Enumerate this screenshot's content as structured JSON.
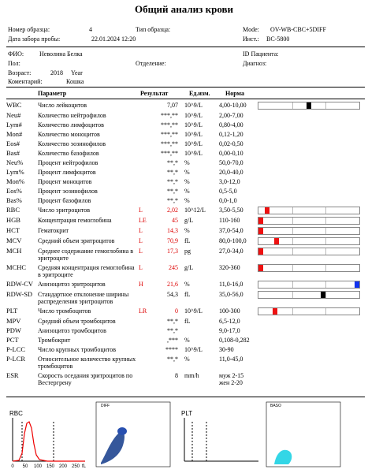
{
  "title": "Общий анализ крови",
  "header": {
    "sample_no": {
      "label": "Номер образца:",
      "value": "4"
    },
    "sample_type": {
      "label": "Тип образца:"
    },
    "mode": {
      "label": "Mode:",
      "value": "OV-WB-CBC+5DIFF"
    },
    "date": {
      "label": "Дата забора пробы:",
      "value": "22.01.2024 12:20"
    },
    "inst": {
      "label": "Инст.:",
      "value": "BC-5800"
    },
    "name": {
      "label": "ФИО:",
      "value": "Неволина Белка"
    },
    "patient_id": {
      "label": "ID Пациента:"
    },
    "sex": {
      "label": "Пол:"
    },
    "department": {
      "label": "Отделение:"
    },
    "diagnosis": {
      "label": "Диагноз:"
    },
    "age": {
      "label": "Возраст:",
      "value": "2018",
      "unit": "Year"
    },
    "comment": {
      "label": "Коментарий:",
      "value": "Кошка"
    }
  },
  "table": {
    "columns": [
      "Параметр",
      "Результат",
      "Ед.изм.",
      "Норма"
    ],
    "rows": [
      {
        "code": "WBC",
        "name": "Число лейкоцитов",
        "result": "7,07",
        "unit": "10^9/L",
        "norm": "4,00-10,00",
        "marker": "#000000"
      },
      {
        "code": "Neu#",
        "name": "Количество  нейтрофилов",
        "result": "***,**",
        "unit": "10^9/L",
        "norm": "2,00-7,00"
      },
      {
        "code": "Lym#",
        "name": "Количество  лимфоцитов",
        "result": "***,**",
        "unit": "10^9/L",
        "norm": "0,80-4,00"
      },
      {
        "code": "Mon#",
        "name": "Количество  моноцитов",
        "result": "***,**",
        "unit": "10^9/L",
        "norm": "0,12-1,20"
      },
      {
        "code": "Eos#",
        "name": "Количество  эозинофилов",
        "result": "***,**",
        "unit": "10^9/L",
        "norm": "0,02-0,50"
      },
      {
        "code": "Bas#",
        "name": "Количество  базофилов",
        "result": "***,**",
        "unit": "10^9/L",
        "norm": "0,00-0,10"
      },
      {
        "code": "Neu%",
        "name": "Процент нейтрофилов",
        "result": "**,*",
        "unit": "%",
        "norm": "50,0-70,0"
      },
      {
        "code": "Lym%",
        "name": "Процент лимфоцитов",
        "result": "**,*",
        "unit": "%",
        "norm": "20,0-40,0"
      },
      {
        "code": "Mon%",
        "name": "Процент моноцитов",
        "result": "**,*",
        "unit": "%",
        "norm": "3,0-12,0"
      },
      {
        "code": "Eos%",
        "name": "Процент эозинофилов",
        "result": "**,*",
        "unit": "%",
        "norm": "0,5-5,0"
      },
      {
        "code": "Bas%",
        "name": "Процент базофилов",
        "result": "**,*",
        "unit": "%",
        "norm": "0,0-1,0"
      },
      {
        "code": "RBC",
        "name": "Число эритроцитов",
        "flag": "L",
        "result": "2,02",
        "unit": "10^12/L",
        "norm": "3,50-5,50",
        "marker": "#ee1111"
      },
      {
        "code": "HGB",
        "name": "Концентрация гемоглобина",
        "flag": "LE",
        "result": "45",
        "unit": "g/L",
        "norm": "110-160",
        "marker": "#ee1111"
      },
      {
        "code": "HCT",
        "name": "Гематокрит",
        "flag": "L",
        "result": "14,3",
        "unit": "%",
        "norm": "37,0-54,0",
        "marker": "#ee1111"
      },
      {
        "code": "MCV",
        "name": "Средний объем эритроцитов",
        "flag": "L",
        "result": "70,9",
        "unit": "fL",
        "norm": "80,0-100,0",
        "marker": "#ee1111"
      },
      {
        "code": "MCH",
        "name": "Среднее содержание гемоглобина в эритроците",
        "flag": "L",
        "result": "17,3",
        "unit": "pg",
        "norm": "27,0-34,0",
        "marker": "#ee1111"
      },
      {
        "code": "MCHC",
        "name": "Средняя концентрация гемоглобина в эритроците",
        "flag": "L",
        "result": "245",
        "unit": "g/L",
        "norm": "320-360",
        "marker": "#ee1111"
      },
      {
        "code": "RDW-CV",
        "name": "Анизоцитоз эритроцитов",
        "flag": "H",
        "result": "21,6",
        "unit": "%",
        "norm": "11,0-16,0",
        "marker": "#1133ee"
      },
      {
        "code": "RDW-SD",
        "name": "Стандартное отклонение ширины распределения эритроцитов",
        "result": "54,3",
        "unit": "fL",
        "norm": "35,0-56,0",
        "marker": "#000000"
      },
      {
        "code": "PLT",
        "name": "Число тромбоцитов",
        "flag": "LR",
        "result": "0",
        "unit": "10^9/L",
        "norm": "100-300",
        "marker": "#ee1111"
      },
      {
        "code": "MPV",
        "name": "Средний объем тромбоцитов",
        "result": "**,*",
        "unit": "fL",
        "norm": "6,5-12,0"
      },
      {
        "code": "PDW",
        "name": "Анизоцитоз тромбоцитов",
        "result": "**,*",
        "norm": "9,0-17,0"
      },
      {
        "code": "PCT",
        "name": "Тромбокрит",
        "result": ",***",
        "unit": "%",
        "norm": "0,108-0,282"
      },
      {
        "code": "P-LCC",
        "name": "Число крупных тромбоцитов",
        "result": "****",
        "unit": "10^9/L",
        "norm": "30-90"
      },
      {
        "code": "P-LCR",
        "name": "Относительное количество крупных тромбоцитов",
        "result": "**,*",
        "unit": "%",
        "norm": "11,0-45,0"
      },
      {
        "code": "ESR",
        "name": "Скорость оседания эритроцитов по Вестергрену",
        "result": "8",
        "unit": "mm/h",
        "norm": [
          "муж 2-15",
          "жен 2-20"
        ]
      }
    ]
  },
  "histograms": {
    "rbc": {
      "label": "RBC",
      "xticks": [
        "0",
        "50",
        "100",
        "150",
        "200",
        "250"
      ],
      "unit": "fL"
    },
    "diff": {
      "label": "DIFF"
    },
    "plt": {
      "label": "PLT"
    },
    "baso": {
      "label": "BASO"
    }
  }
}
